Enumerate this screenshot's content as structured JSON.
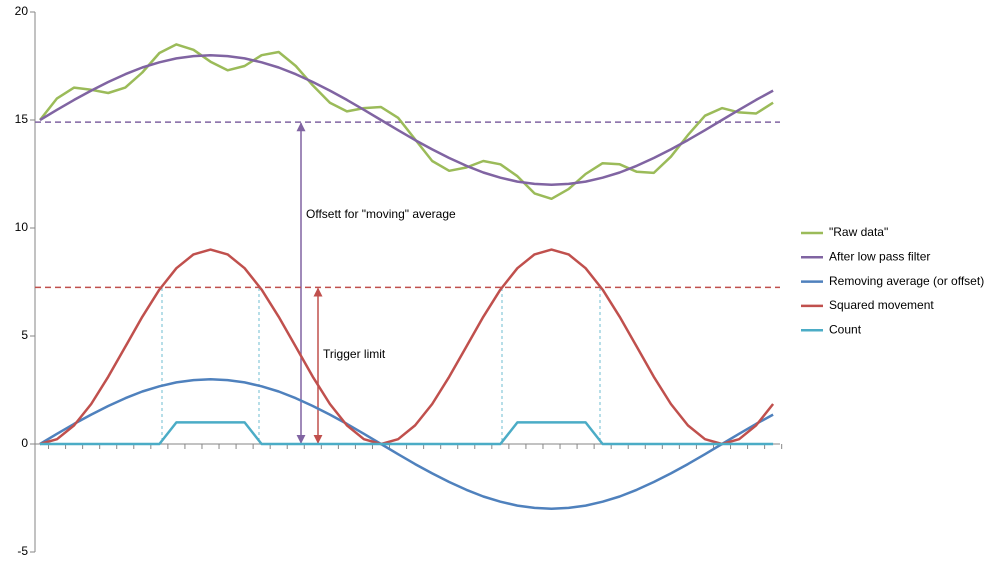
{
  "chart_data": {
    "type": "line",
    "categories": [
      null,
      null,
      null,
      null,
      null,
      null,
      null,
      null,
      null,
      null,
      null,
      null,
      null,
      null,
      null,
      null,
      null,
      null,
      null,
      null,
      null,
      null,
      null,
      null,
      null,
      null,
      null,
      null,
      null,
      null,
      null,
      null,
      null,
      null,
      null,
      null,
      null,
      null,
      null,
      null,
      null,
      null,
      null,
      null
    ],
    "series": [
      {
        "name": "\"Raw data\"",
        "color": "#9bbb59",
        "values": [
          15,
          16.0,
          16.5,
          16.4,
          16.25,
          16.5,
          17.2,
          18.1,
          18.5,
          18.25,
          17.7,
          17.3,
          17.5,
          18.0,
          18.15,
          17.5,
          16.6,
          15.8,
          15.4,
          15.55,
          15.6,
          15.1,
          14.1,
          13.1,
          12.65,
          12.8,
          13.1,
          12.95,
          12.4,
          11.6,
          11.35,
          11.8,
          12.5,
          13.0,
          12.95,
          12.6,
          12.55,
          13.3,
          14.3,
          15.2,
          15.55,
          15.35,
          15.3,
          15.8
        ]
      },
      {
        "name": "After low pass filter",
        "color": "#8064a2",
        "values": [
          15,
          15.47,
          15.93,
          16.36,
          16.76,
          17.12,
          17.43,
          17.67,
          17.85,
          17.96,
          18,
          17.96,
          17.85,
          17.67,
          17.43,
          17.12,
          16.76,
          16.36,
          15.93,
          15.47,
          15,
          14.53,
          14.07,
          13.64,
          13.24,
          12.88,
          12.57,
          12.33,
          12.15,
          12.04,
          12,
          12.04,
          12.15,
          12.33,
          12.57,
          12.88,
          13.24,
          13.64,
          14.07,
          14.53,
          15,
          15.47,
          15.93,
          16.36
        ]
      },
      {
        "name": "Removing average (or offset)",
        "color": "#4f81bd",
        "values": [
          0,
          0.47,
          0.93,
          1.36,
          1.76,
          2.12,
          2.43,
          2.67,
          2.85,
          2.96,
          3,
          2.96,
          2.85,
          2.67,
          2.43,
          2.12,
          1.76,
          1.36,
          0.93,
          0.47,
          0,
          -0.47,
          -0.93,
          -1.36,
          -1.76,
          -2.12,
          -2.43,
          -2.67,
          -2.85,
          -2.96,
          -3,
          -2.96,
          -2.85,
          -2.67,
          -2.43,
          -2.12,
          -1.76,
          -1.36,
          -0.93,
          -0.47,
          0,
          0.47,
          0.93,
          1.36
        ]
      },
      {
        "name": "Squared movement",
        "color": "#c0504d",
        "values": [
          0,
          0.22,
          0.86,
          1.85,
          3.11,
          4.5,
          5.89,
          7.15,
          8.14,
          8.78,
          9,
          8.78,
          8.14,
          7.15,
          5.89,
          4.5,
          3.11,
          1.85,
          0.86,
          0.22,
          0,
          0.22,
          0.86,
          1.85,
          3.11,
          4.5,
          5.89,
          7.15,
          8.14,
          8.78,
          9,
          8.78,
          8.14,
          7.15,
          5.89,
          4.5,
          3.11,
          1.85,
          0.86,
          0.22,
          0,
          0.22,
          0.86,
          1.85
        ]
      },
      {
        "name": "Count",
        "color": "#4bacc6",
        "values": [
          0,
          0,
          0,
          0,
          0,
          0,
          0,
          0,
          1,
          1,
          1,
          1,
          1,
          0,
          0,
          0,
          0,
          0,
          0,
          0,
          0,
          0,
          0,
          0,
          0,
          0,
          0,
          0,
          1,
          1,
          1,
          1,
          1,
          0,
          0,
          0,
          0,
          0,
          0,
          0,
          0,
          0,
          0,
          0
        ]
      }
    ],
    "annotations": [
      {
        "text": "Offsett for \"moving\" average",
        "value": 14.9,
        "color": "#8064a2"
      },
      {
        "text": "Trigger limit",
        "value": 7.25,
        "color": "#c0504d"
      }
    ],
    "ylim": [
      -5,
      20
    ],
    "yticks": [
      -5,
      0,
      5,
      10,
      15,
      20
    ],
    "legend": "right"
  }
}
